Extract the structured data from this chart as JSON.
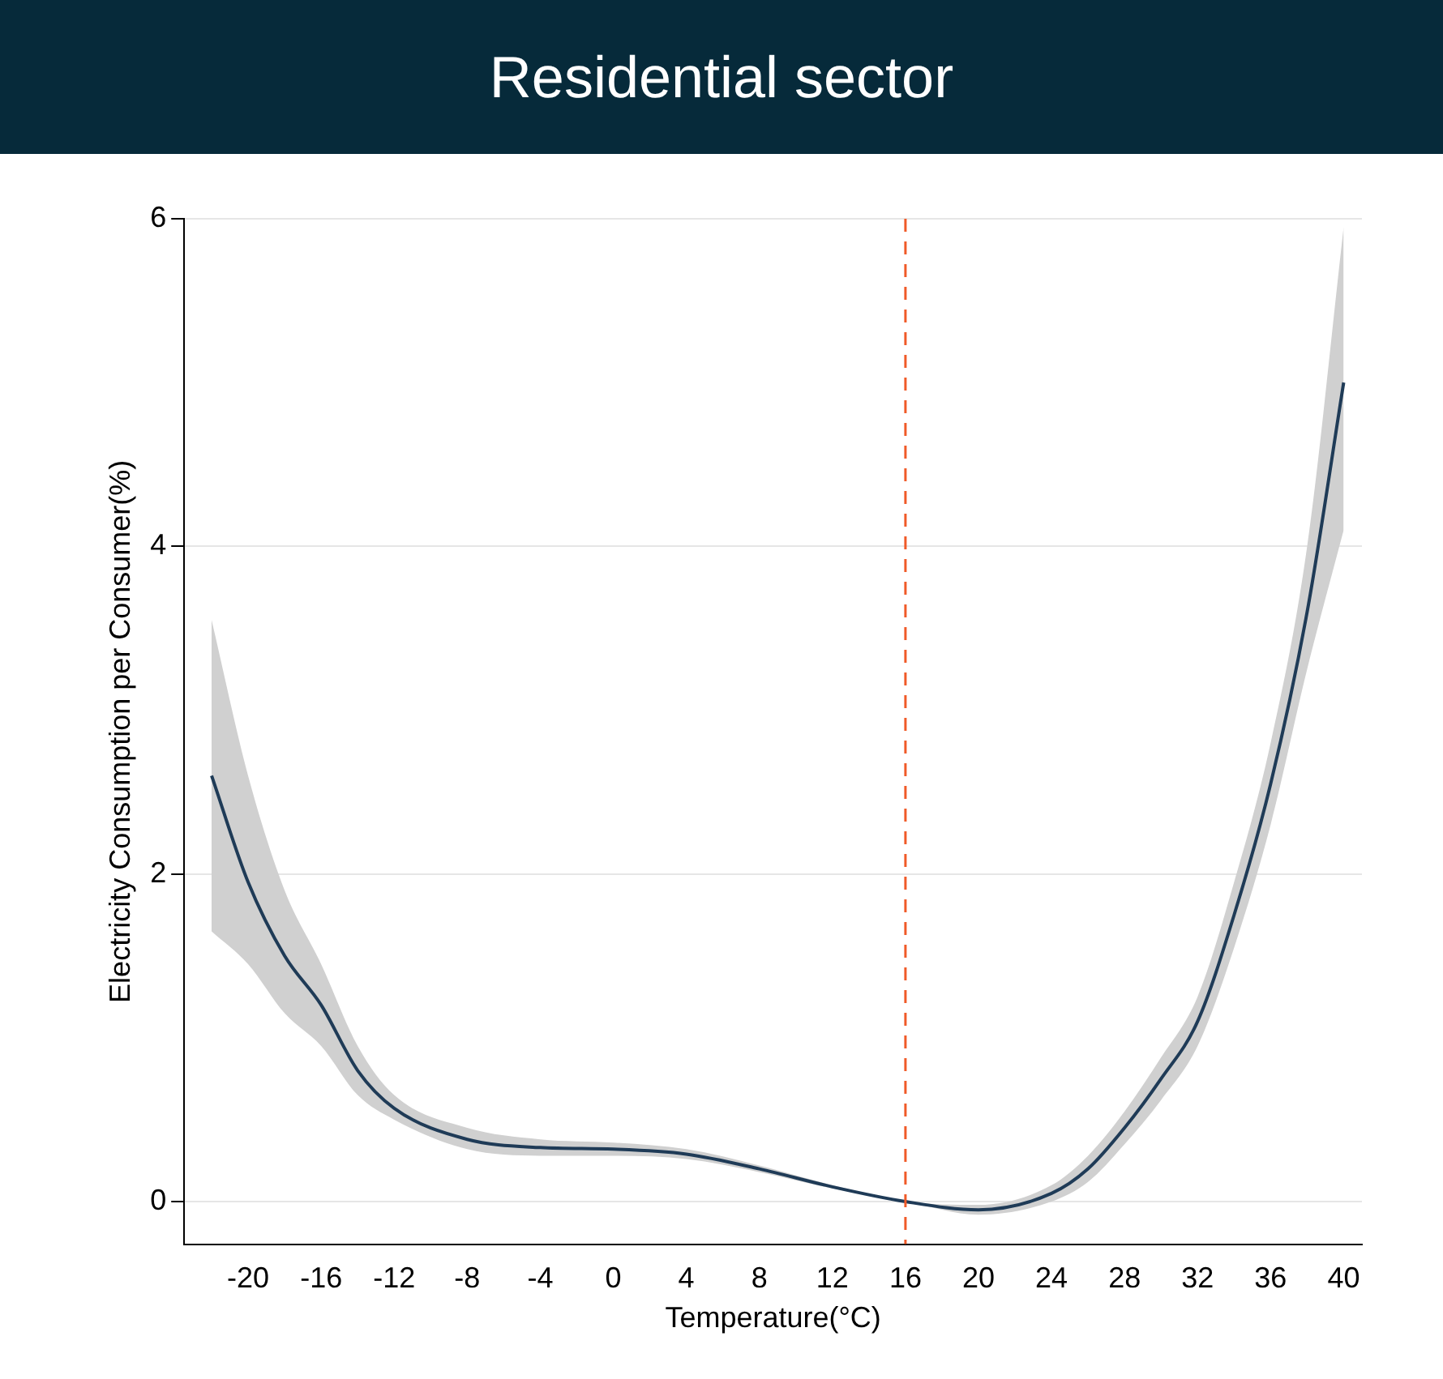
{
  "chart_data": {
    "type": "line",
    "title": "Residential sector",
    "xlabel": "Temperature(°C)",
    "ylabel": "Electricity Consumption per Consumer(%)",
    "xlim": [
      -23.5,
      41
    ],
    "xticks": [
      -20,
      -16,
      -12,
      -8,
      -4,
      0,
      4,
      8,
      12,
      16,
      20,
      24,
      28,
      32,
      36,
      40
    ],
    "ylim": [
      -0.26,
      6
    ],
    "yticks": [
      0,
      2,
      4,
      6
    ],
    "grid": "y",
    "legend": false,
    "marker": "none",
    "line_style": "solid",
    "ref_lines": [
      {
        "axis": "x",
        "value": 16,
        "color": "#f05a28",
        "line_style": "dashed"
      }
    ],
    "series": [
      {
        "color": "#1f3b57",
        "x": [
          -22,
          -20,
          -18,
          -16,
          -14,
          -12,
          -8,
          -4,
          0,
          4,
          8,
          12,
          16,
          20,
          24,
          26,
          28,
          30,
          32,
          34,
          36,
          38,
          40
        ],
        "values": [
          2.6,
          1.95,
          1.5,
          1.2,
          0.8,
          0.57,
          0.38,
          0.33,
          0.32,
          0.29,
          0.2,
          0.09,
          0,
          -0.05,
          0.05,
          0.2,
          0.45,
          0.75,
          1.1,
          1.75,
          2.55,
          3.6,
          5.0
        ],
        "lower": [
          1.65,
          1.45,
          1.15,
          0.95,
          0.65,
          0.5,
          0.32,
          0.28,
          0.28,
          0.26,
          0.18,
          0.08,
          0,
          -0.08,
          0,
          0.12,
          0.35,
          0.62,
          0.95,
          1.55,
          2.3,
          3.25,
          4.1
        ],
        "upper": [
          3.55,
          2.6,
          1.9,
          1.45,
          0.95,
          0.65,
          0.45,
          0.38,
          0.36,
          0.32,
          0.22,
          0.1,
          0,
          -0.02,
          0.1,
          0.28,
          0.55,
          0.88,
          1.25,
          1.95,
          2.8,
          4.0,
          5.95
        ]
      }
    ]
  }
}
